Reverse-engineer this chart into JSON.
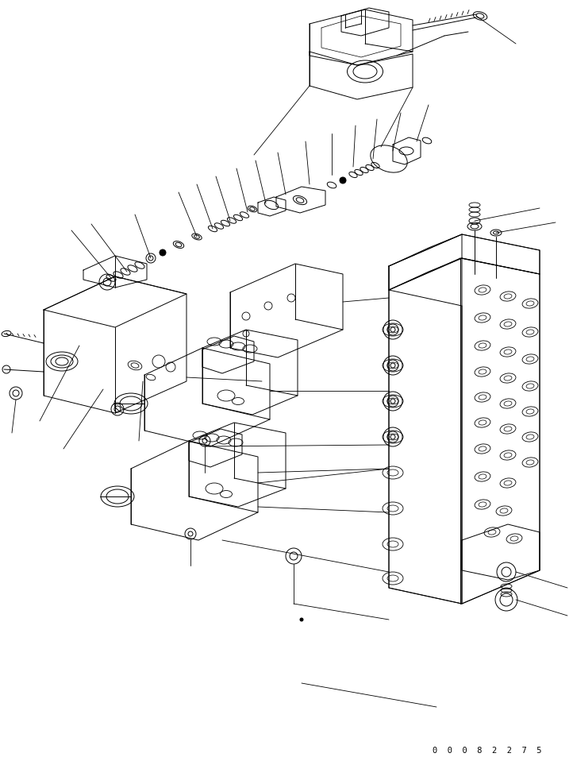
{
  "background_color": "#ffffff",
  "line_color": "#000000",
  "part_number": "0  0  0  8  2  2  7  5",
  "figure_width": 7.22,
  "figure_height": 9.58,
  "dpi": 100
}
